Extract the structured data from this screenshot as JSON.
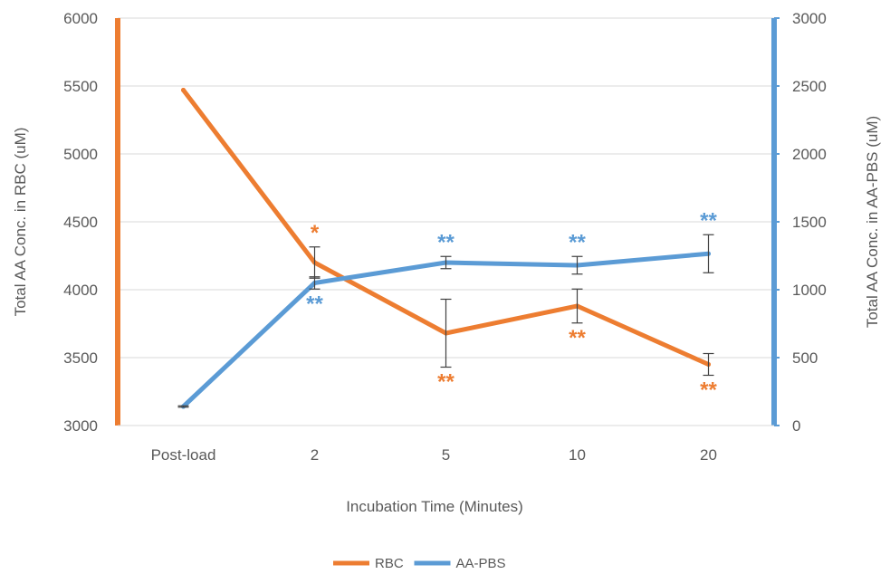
{
  "chart_data": {
    "type": "line",
    "title": "",
    "xlabel": "Incubation Time (Minutes)",
    "ylabel_left": "Total AA Conc. in RBC (uM)",
    "ylabel_right": "Total AA Conc. in AA-PBS (uM)",
    "categories": [
      "Post-load",
      "2",
      "5",
      "10",
      "20"
    ],
    "ylim_left": [
      3000,
      6000
    ],
    "yticks_left": [
      3000,
      3500,
      4000,
      4500,
      5000,
      5500,
      6000
    ],
    "ylim_right": [
      0,
      3000
    ],
    "yticks_right": [
      0,
      500,
      1000,
      1500,
      2000,
      2500,
      3000
    ],
    "grid": true,
    "legend_position": "bottom",
    "series": [
      {
        "name": "RBC",
        "axis": "left",
        "color": "#ED7D31",
        "values": [
          5470,
          4200,
          3680,
          3880,
          3450
        ],
        "error": [
          0,
          115,
          250,
          125,
          80
        ],
        "annotations": [
          "",
          "*",
          "**",
          "**",
          "**"
        ],
        "annotation_side": [
          "",
          "above",
          "below",
          "below",
          "below"
        ]
      },
      {
        "name": "AA-PBS",
        "axis": "right",
        "color": "#5B9BD5",
        "values": [
          140,
          1050,
          1200,
          1180,
          1265
        ],
        "error": [
          5,
          45,
          45,
          65,
          140
        ],
        "annotations": [
          "",
          "**",
          "**",
          "**",
          "**"
        ],
        "annotation_side": [
          "",
          "below",
          "above",
          "above",
          "above"
        ]
      }
    ]
  }
}
